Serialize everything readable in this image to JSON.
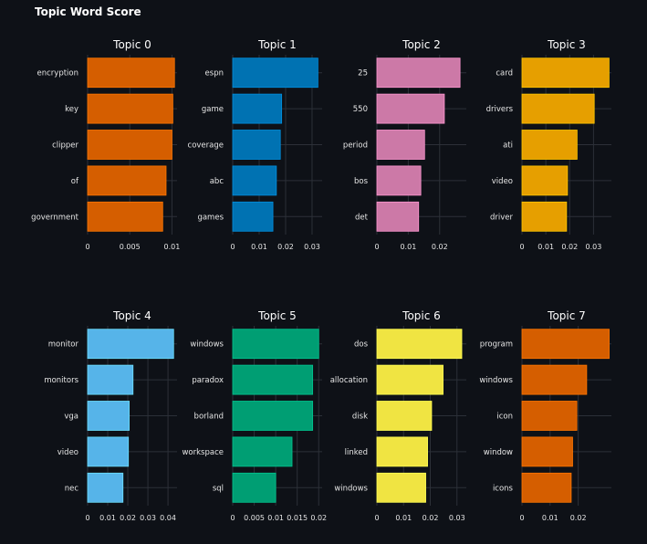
{
  "title": "Topic Word Score",
  "chart_data": [
    {
      "type": "bar",
      "orientation": "horizontal",
      "title": "Topic 0",
      "color": "#d55e00",
      "categories": [
        "encryption",
        "key",
        "clipper",
        "of",
        "government"
      ],
      "values": [
        0.0103,
        0.0101,
        0.01,
        0.0093,
        0.0089
      ],
      "xlim": [
        0,
        0.0106
      ],
      "xticks": [
        0,
        0.005,
        0.01
      ],
      "xtick_labels": [
        "0",
        "0.005",
        "0.01"
      ]
    },
    {
      "type": "bar",
      "orientation": "horizontal",
      "title": "Topic 1",
      "color": "#0072b2",
      "categories": [
        "espn",
        "game",
        "coverage",
        "abc",
        "games"
      ],
      "values": [
        0.0322,
        0.0185,
        0.018,
        0.0165,
        0.0152
      ],
      "xlim": [
        0,
        0.0338
      ],
      "xticks": [
        0,
        0.01,
        0.02,
        0.03
      ],
      "xtick_labels": [
        "0",
        "0.01",
        "0.02",
        "0.03"
      ]
    },
    {
      "type": "bar",
      "orientation": "horizontal",
      "title": "Topic 2",
      "color": "#cc79a7",
      "categories": [
        "25",
        "550",
        "period",
        "bos",
        "det"
      ],
      "values": [
        0.0265,
        0.0215,
        0.0152,
        0.014,
        0.0133
      ],
      "xlim": [
        0,
        0.0285
      ],
      "xticks": [
        0,
        0.01,
        0.02
      ],
      "xtick_labels": [
        "0",
        "0.01",
        "0.02"
      ]
    },
    {
      "type": "bar",
      "orientation": "horizontal",
      "title": "Topic 3",
      "color": "#e69f00",
      "categories": [
        "card",
        "drivers",
        "ati",
        "video",
        "driver"
      ],
      "values": [
        0.0365,
        0.0303,
        0.0231,
        0.0191,
        0.0187
      ],
      "xlim": [
        0,
        0.0375
      ],
      "xticks": [
        0,
        0.01,
        0.02,
        0.03
      ],
      "xtick_labels": [
        "0",
        "0.01",
        "0.02",
        "0.03"
      ]
    },
    {
      "type": "bar",
      "orientation": "horizontal",
      "title": "Topic 4",
      "color": "#56b4e9",
      "categories": [
        "monitor",
        "monitors",
        "vga",
        "video",
        "nec"
      ],
      "values": [
        0.0428,
        0.0226,
        0.0207,
        0.0203,
        0.0176
      ],
      "xlim": [
        0,
        0.0445
      ],
      "xticks": [
        0,
        0.01,
        0.02,
        0.03,
        0.04
      ],
      "xtick_labels": [
        "0",
        "0.01",
        "0.02",
        "0.03",
        "0.04"
      ]
    },
    {
      "type": "bar",
      "orientation": "horizontal",
      "title": "Topic 5",
      "color": "#009e73",
      "categories": [
        "windows",
        "paradox",
        "borland",
        "workspace",
        "sql"
      ],
      "values": [
        0.02,
        0.0186,
        0.0186,
        0.0138,
        0.01
      ],
      "xlim": [
        0,
        0.0208
      ],
      "xticks": [
        0,
        0.005,
        0.01,
        0.015,
        0.02
      ],
      "xtick_labels": [
        "0",
        "0.005",
        "0.01",
        "0.015",
        "0.02"
      ]
    },
    {
      "type": "bar",
      "orientation": "horizontal",
      "title": "Topic 6",
      "color": "#f0e442",
      "categories": [
        "dos",
        "allocation",
        "disk",
        "linked",
        "windows"
      ],
      "values": [
        0.0318,
        0.0248,
        0.0205,
        0.019,
        0.0183
      ],
      "xlim": [
        0,
        0.0335
      ],
      "xticks": [
        0,
        0.01,
        0.02,
        0.03
      ],
      "xtick_labels": [
        "0",
        "0.01",
        "0.02",
        "0.03"
      ]
    },
    {
      "type": "bar",
      "orientation": "horizontal",
      "title": "Topic 7",
      "color": "#d55e00",
      "categories": [
        "program",
        "windows",
        "icon",
        "window",
        "icons"
      ],
      "values": [
        0.031,
        0.023,
        0.0195,
        0.018,
        0.0175
      ],
      "xlim": [
        0,
        0.0318
      ],
      "xticks": [
        0,
        0.01,
        0.02
      ],
      "xtick_labels": [
        "0",
        "0.01",
        "0.02"
      ]
    }
  ]
}
